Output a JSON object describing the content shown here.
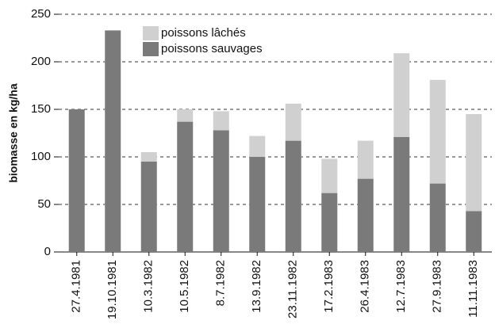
{
  "chart_data": {
    "type": "stacked_bar",
    "y_label": "biomasse en kg/ha",
    "categories": [
      "27.4.1981",
      "19.10.1981",
      "10.3.1982",
      "10.5.1982",
      "8.7.1982",
      "13.9.1982",
      "23.11.1982",
      "17.2.1983",
      "26.4.1983",
      "12.7.1983",
      "27.9.1983",
      "11.11.1983"
    ],
    "series": [
      {
        "name": "poissons sauvages",
        "color": "#7a7a7a",
        "values": [
          150,
          233,
          95,
          137,
          128,
          100,
          117,
          62,
          77,
          121,
          72,
          43
        ]
      },
      {
        "name": "poissons lâchés",
        "color": "#d0d0d0",
        "values": [
          0,
          0,
          10,
          13,
          20,
          22,
          39,
          36,
          40,
          88,
          109,
          102
        ]
      }
    ],
    "ylim": [
      0,
      250
    ],
    "yticks": [
      0,
      50,
      100,
      150,
      200,
      250
    ],
    "grid": true
  }
}
